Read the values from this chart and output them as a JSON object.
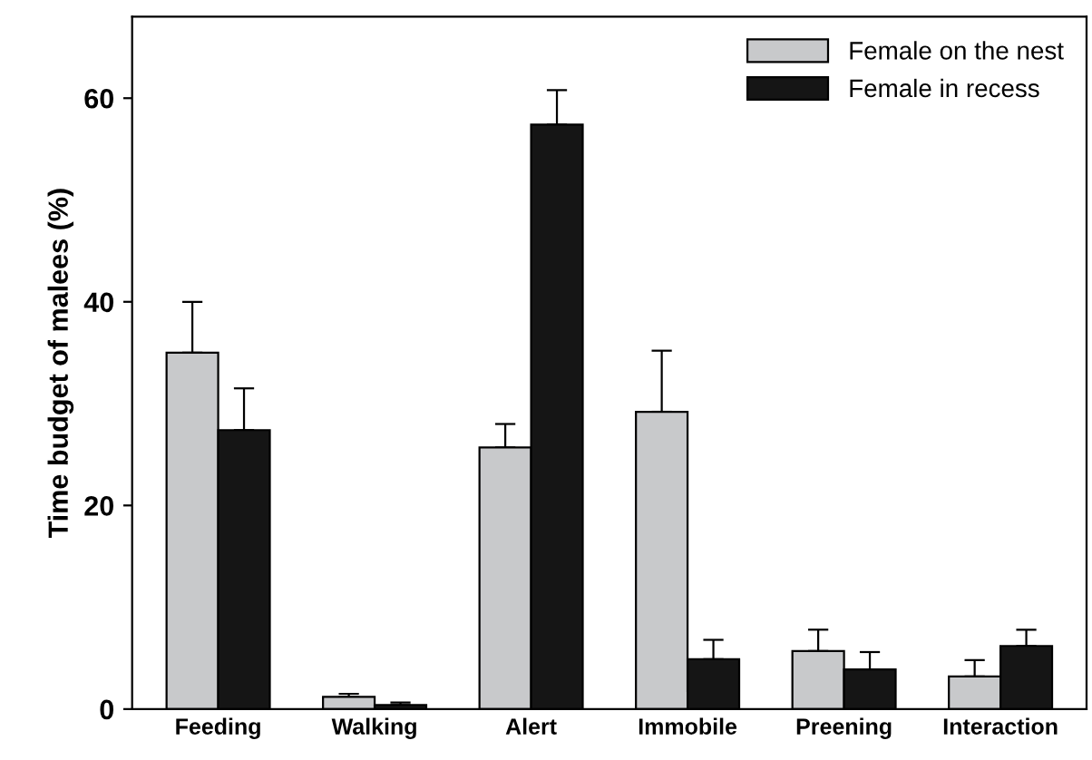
{
  "chart_data": {
    "type": "bar",
    "ylabel": "Time budget of malees (%)",
    "categories": [
      "Feeding",
      "Walking",
      "Alert",
      "Immobile",
      "Preening",
      "Interaction"
    ],
    "series": [
      {
        "name": "Female on the nest",
        "color": "#c8c9cb",
        "values": [
          35.0,
          1.2,
          25.7,
          29.2,
          5.7,
          3.2
        ],
        "errors": [
          [
            35.0,
            40.0
          ],
          [
            1.2,
            1.5
          ],
          [
            25.7,
            28.0
          ],
          [
            29.2,
            35.2
          ],
          [
            5.7,
            7.8
          ],
          [
            3.2,
            4.8
          ]
        ]
      },
      {
        "name": "Female in recess",
        "color": "#151515",
        "values": [
          27.4,
          0.4,
          57.4,
          4.9,
          3.9,
          6.2
        ],
        "errors": [
          [
            27.4,
            31.5
          ],
          [
            0.4,
            0.65
          ],
          [
            57.4,
            60.8
          ],
          [
            4.9,
            6.8
          ],
          [
            3.9,
            5.6
          ],
          [
            6.2,
            7.8
          ]
        ]
      }
    ],
    "ylim": [
      0,
      68
    ],
    "yticks": [
      0,
      20,
      40,
      60
    ],
    "grid": false,
    "legend": "top right"
  }
}
